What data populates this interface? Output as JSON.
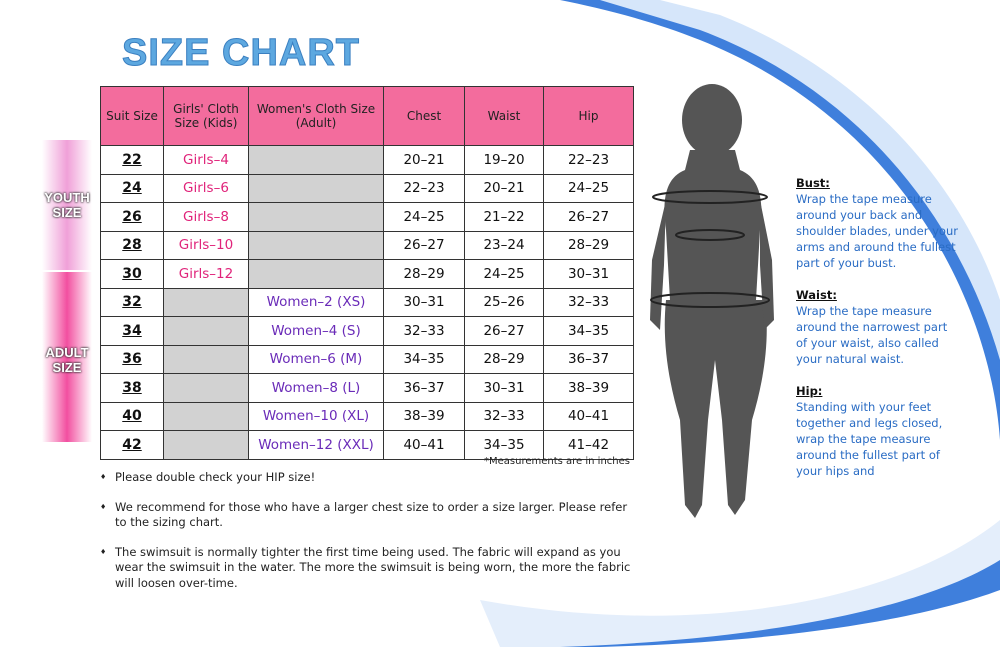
{
  "title": "SIZE CHART",
  "side_labels": [
    "YOUTH SIZE",
    "ADULT SIZE"
  ],
  "table": {
    "headers": [
      "Suit Size",
      "Girls' Cloth Size (Kids)",
      "Women's Cloth Size (Adult)",
      "Chest",
      "Waist",
      "Hip"
    ],
    "rows": [
      [
        "22",
        "Girls–4",
        null,
        "20–21",
        "19–20",
        "22–23"
      ],
      [
        "24",
        "Girls–6",
        null,
        "22–23",
        "20–21",
        "24–25"
      ],
      [
        "26",
        "Girls–8",
        null,
        "24–25",
        "21–22",
        "26–27"
      ],
      [
        "28",
        "Girls–10",
        null,
        "26–27",
        "23–24",
        "28–29"
      ],
      [
        "30",
        "Girls–12",
        null,
        "28–29",
        "24–25",
        "30–31"
      ],
      [
        "32",
        null,
        "Women–2 (XS)",
        "30–31",
        "25–26",
        "32–33"
      ],
      [
        "34",
        null,
        "Women–4 (S)",
        "32–33",
        "26–27",
        "34–35"
      ],
      [
        "36",
        null,
        "Women–6 (M)",
        "34–35",
        "28–29",
        "36–37"
      ],
      [
        "38",
        null,
        "Women–8 (L)",
        "36–37",
        "30–31",
        "38–39"
      ],
      [
        "40",
        null,
        "Women–10 (XL)",
        "38–39",
        "32–33",
        "40–41"
      ],
      [
        "42",
        null,
        "Women–12 (XXL)",
        "40–41",
        "34–35",
        "41–42"
      ]
    ],
    "note": "*Measurements are in inches"
  },
  "bullets": [
    "Please double check your HIP size!",
    "We recommend for those who have a larger chest size to order a size larger.  Please refer to the sizing chart.",
    "The swimsuit is normally tighter the first time being used.  The fabric will expand as you wear the swimsuit in the water.  The more the swimsuit is being worn, the more the fabric will loosen over-time."
  ],
  "guide": [
    {
      "heading": "Bust:",
      "text": "Wrap the tape measure around your back and shoulder blades, under your arms and around the fullest part of your bust."
    },
    {
      "heading": "Waist:",
      "text": "Wrap the tape measure around the narrowest part of your waist, also called your natural waist."
    },
    {
      "heading": "Hip:",
      "text": "Standing with your feet together and legs closed, wrap the tape measure around the fullest part of your hips and"
    }
  ]
}
